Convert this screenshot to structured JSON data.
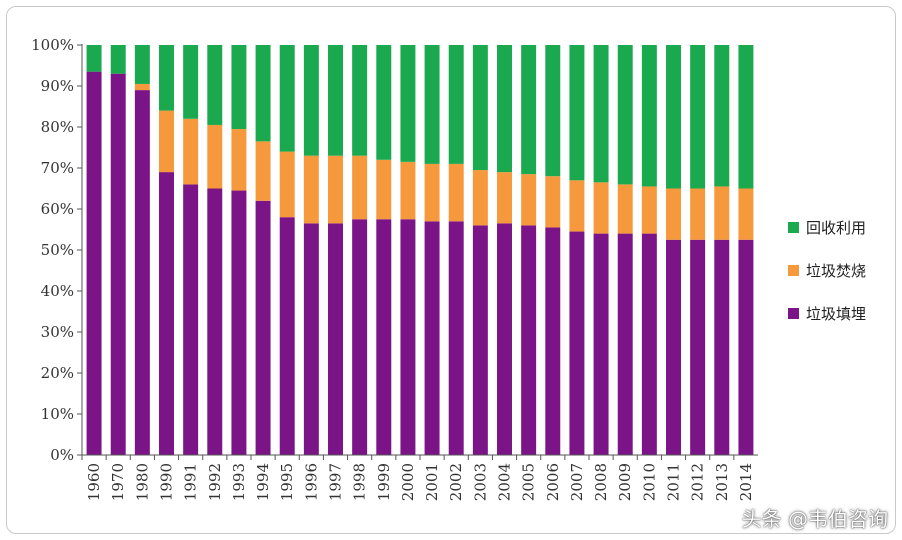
{
  "chart_data": {
    "type": "bar",
    "stacked": true,
    "percent": true,
    "categories": [
      "1960",
      "1970",
      "1980",
      "1990",
      "1991",
      "1992",
      "1993",
      "1994",
      "1995",
      "1996",
      "1997",
      "1998",
      "1999",
      "2000",
      "2001",
      "2002",
      "2003",
      "2004",
      "2005",
      "2006",
      "2007",
      "2008",
      "2009",
      "2010",
      "2011",
      "2012",
      "2013",
      "2014"
    ],
    "series": [
      {
        "name": "垃圾填埋",
        "color": "#7b1487",
        "values": [
          93.5,
          93,
          89,
          69,
          66,
          65,
          64.5,
          62,
          58,
          56.5,
          56.5,
          57.5,
          57.5,
          57.5,
          57,
          57,
          56,
          56.5,
          56,
          55.5,
          54.5,
          54,
          54,
          54,
          52.5,
          52.5,
          52.5,
          52.5
        ]
      },
      {
        "name": "垃圾焚烧",
        "color": "#f6993c",
        "values": [
          0,
          0,
          1.5,
          15,
          16,
          15.5,
          15,
          14.5,
          16,
          16.5,
          16.5,
          15.5,
          14.5,
          14,
          14,
          14,
          13.5,
          12.5,
          12.5,
          12.5,
          12.5,
          12.5,
          12,
          11.5,
          12.5,
          12.5,
          13,
          12.5
        ]
      },
      {
        "name": "回收利用",
        "color": "#1aa94f",
        "values": [
          6.5,
          7,
          9.5,
          16,
          18,
          19.5,
          20.5,
          23.5,
          26,
          27,
          27,
          27,
          28,
          28.5,
          29,
          29,
          30.5,
          31,
          31.5,
          32,
          33,
          33.5,
          34,
          34.5,
          35,
          35,
          34.5,
          35
        ]
      }
    ],
    "y_ticks": [
      "0%",
      "10%",
      "20%",
      "30%",
      "40%",
      "50%",
      "60%",
      "70%",
      "80%",
      "90%",
      "100%"
    ],
    "ylim": [
      0,
      100
    ],
    "legend_position": "right",
    "legend_order": [
      "回收利用",
      "垃圾焚烧",
      "垃圾填埋"
    ],
    "grid": false
  },
  "watermark": "头条 @韦伯咨询"
}
